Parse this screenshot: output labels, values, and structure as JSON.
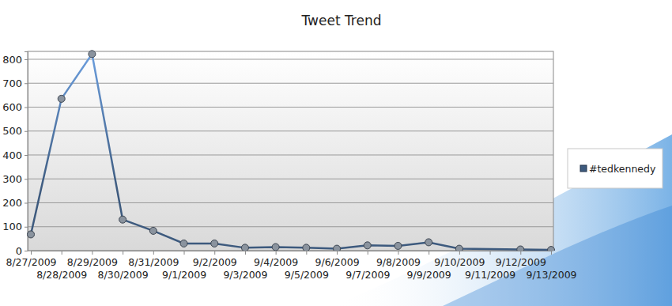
{
  "chart_data": {
    "type": "line",
    "title": "Tweet Trend",
    "x": [
      "8/27/2009",
      "8/28/2009",
      "8/29/2009",
      "8/30/2009",
      "8/31/2009",
      "9/1/2009",
      "9/2/2009",
      "9/3/2009",
      "9/4/2009",
      "9/5/2009",
      "9/6/2009",
      "9/7/2009",
      "9/8/2009",
      "9/9/2009",
      "9/10/2009",
      "9/12/2009",
      "9/13/2009"
    ],
    "series": [
      {
        "name": "#tedkennedy",
        "color": "#3d5a7e",
        "marker": "circle",
        "values": [
          68,
          635,
          822,
          130,
          83,
          30,
          30,
          12,
          15,
          12,
          8,
          22,
          20,
          35,
          8,
          5,
          3
        ]
      }
    ],
    "xlim": [
      "8/27/2009",
      "9/13/2009"
    ],
    "xticks": [
      "8/27/2009",
      "8/28/2009",
      "8/29/2009",
      "8/30/2009",
      "8/31/2009",
      "9/1/2009",
      "9/2/2009",
      "9/3/2009",
      "9/4/2009",
      "9/5/2009",
      "9/6/2009",
      "9/7/2009",
      "9/8/2009",
      "9/9/2009",
      "9/10/2009",
      "9/11/2009",
      "9/12/2009",
      "9/13/2009"
    ],
    "ylim": [
      0,
      833
    ],
    "yticks": [
      0,
      100,
      200,
      300,
      400,
      500,
      600,
      700,
      800
    ],
    "grid": true,
    "legend": "right"
  }
}
